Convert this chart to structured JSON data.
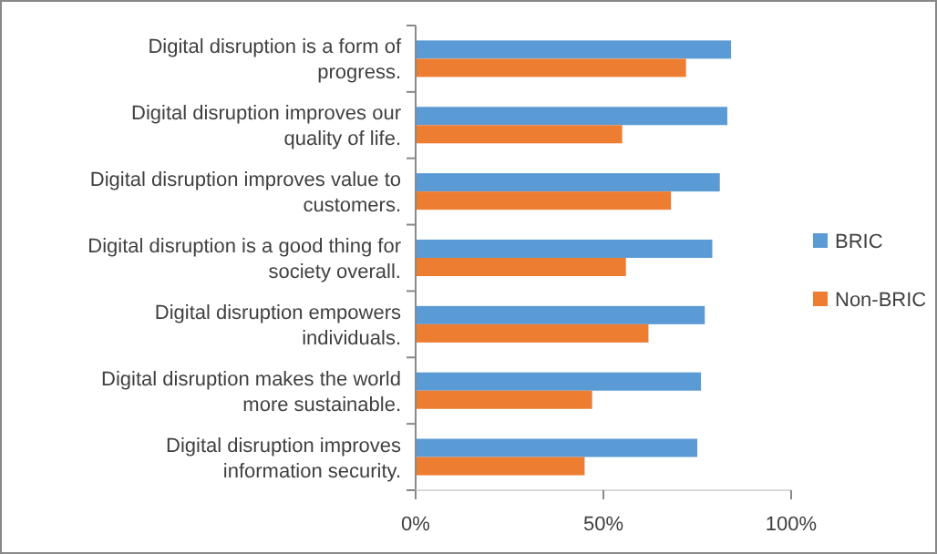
{
  "chart_data": {
    "type": "bar",
    "orientation": "horizontal",
    "categories": [
      "Digital disruption is a form of progress.",
      "Digital disruption improves our quality of life.",
      "Digital disruption improves value to customers.",
      "Digital disruption is a good thing for society overall.",
      "Digital disruption empowers individuals.",
      "Digital disruption makes the world more sustainable.",
      "Digital disruption improves information security."
    ],
    "series": [
      {
        "name": "BRIC",
        "color": "#5b9bd5",
        "values": [
          84,
          83,
          81,
          79,
          77,
          76,
          75
        ]
      },
      {
        "name": "Non-BRIC",
        "color": "#ed7d31",
        "values": [
          72,
          55,
          68,
          56,
          62,
          47,
          45
        ]
      }
    ],
    "xlim": [
      0,
      100
    ],
    "xticks": [
      {
        "value": 0,
        "label": "0%"
      },
      {
        "value": 50,
        "label": "50%"
      },
      {
        "value": 100,
        "label": "100%"
      }
    ],
    "grid": false,
    "legend": "right"
  }
}
